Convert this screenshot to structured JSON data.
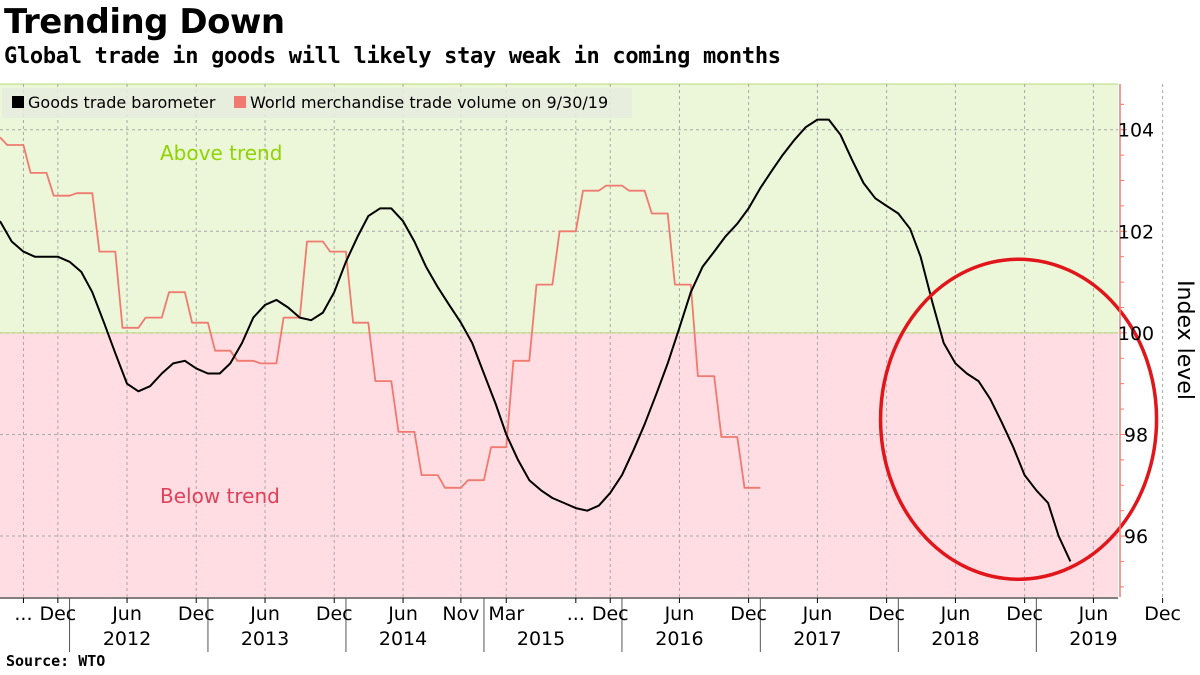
{
  "title": "Trending Down",
  "subtitle": "Global trade in goods will likely stay weak in coming months",
  "source": "Source: WTO",
  "chart_data": {
    "type": "line",
    "ylabel": "Index level",
    "ylim": [
      94.8,
      104.9
    ],
    "y_ticks": [
      96,
      98,
      100,
      102,
      104
    ],
    "trend_line": 100,
    "regions": {
      "above": "Above trend",
      "below": "Below trend"
    },
    "colors": {
      "barometer": "#000000",
      "volume": "#f07a70",
      "above_bg": "#ebf7d8",
      "below_bg": "#ffdde3",
      "above_text": "#8fd400",
      "below_text": "#e0405a",
      "highlight": "#e0161b"
    },
    "legend_position": "top-left",
    "x_tick_labels": [
      {
        "label": "...",
        "x": "2011-09-01"
      },
      {
        "label": "Dec",
        "x": "2011-12-01"
      },
      {
        "label": "Jun",
        "x": "2012-06-01"
      },
      {
        "label": "Dec",
        "x": "2012-12-01"
      },
      {
        "label": "Jun",
        "x": "2013-06-01"
      },
      {
        "label": "Dec",
        "x": "2013-12-01"
      },
      {
        "label": "Jun",
        "x": "2014-06-01"
      },
      {
        "label": "Nov",
        "x": "2014-11-01"
      },
      {
        "label": "Mar",
        "x": "2015-03-01"
      },
      {
        "label": "...",
        "x": "2015-09-01"
      },
      {
        "label": "Dec",
        "x": "2015-12-01"
      },
      {
        "label": "Jun",
        "x": "2016-06-01"
      },
      {
        "label": "Dec",
        "x": "2016-12-01"
      },
      {
        "label": "Jun",
        "x": "2017-06-01"
      },
      {
        "label": "Dec",
        "x": "2017-12-01"
      },
      {
        "label": "Jun",
        "x": "2018-06-01"
      },
      {
        "label": "Dec",
        "x": "2018-12-01"
      },
      {
        "label": "Jun",
        "x": "2019-06-01"
      },
      {
        "label": "Dec",
        "x": "2019-12-01"
      }
    ],
    "year_labels": [
      {
        "label": "2012",
        "x": "2012-06-01"
      },
      {
        "label": "2013",
        "x": "2013-06-01"
      },
      {
        "label": "2014",
        "x": "2014-06-01"
      },
      {
        "label": "2015",
        "x": "2015-06-01"
      },
      {
        "label": "2016",
        "x": "2016-06-01"
      },
      {
        "label": "2017",
        "x": "2017-06-01"
      },
      {
        "label": "2018",
        "x": "2018-06-01"
      },
      {
        "label": "2019",
        "x": "2019-06-01"
      }
    ],
    "series": [
      {
        "name": "Goods trade barometer",
        "points": [
          [
            "2011-07-01",
            102.2
          ],
          [
            "2011-08-01",
            101.8
          ],
          [
            "2011-09-01",
            101.6
          ],
          [
            "2011-10-01",
            101.5
          ],
          [
            "2011-11-01",
            101.5
          ],
          [
            "2011-12-01",
            101.5
          ],
          [
            "2012-01-01",
            101.4
          ],
          [
            "2012-02-01",
            101.2
          ],
          [
            "2012-03-01",
            100.8
          ],
          [
            "2012-04-01",
            100.2
          ],
          [
            "2012-05-01",
            99.6
          ],
          [
            "2012-06-01",
            99.0
          ],
          [
            "2012-07-01",
            98.85
          ],
          [
            "2012-08-01",
            98.95
          ],
          [
            "2012-09-01",
            99.2
          ],
          [
            "2012-10-01",
            99.4
          ],
          [
            "2012-11-01",
            99.45
          ],
          [
            "2012-12-01",
            99.3
          ],
          [
            "2013-01-01",
            99.2
          ],
          [
            "2013-02-01",
            99.2
          ],
          [
            "2013-03-01",
            99.4
          ],
          [
            "2013-04-01",
            99.8
          ],
          [
            "2013-05-01",
            100.3
          ],
          [
            "2013-06-01",
            100.55
          ],
          [
            "2013-07-01",
            100.65
          ],
          [
            "2013-08-01",
            100.5
          ],
          [
            "2013-09-01",
            100.3
          ],
          [
            "2013-10-01",
            100.25
          ],
          [
            "2013-11-01",
            100.4
          ],
          [
            "2013-12-01",
            100.8
          ],
          [
            "2014-01-01",
            101.4
          ],
          [
            "2014-02-01",
            101.9
          ],
          [
            "2014-03-01",
            102.3
          ],
          [
            "2014-04-01",
            102.45
          ],
          [
            "2014-05-01",
            102.45
          ],
          [
            "2014-06-01",
            102.2
          ],
          [
            "2014-07-01",
            101.8
          ],
          [
            "2014-08-01",
            101.3
          ],
          [
            "2014-09-01",
            100.9
          ],
          [
            "2014-10-01",
            100.55
          ],
          [
            "2014-11-01",
            100.2
          ],
          [
            "2014-12-01",
            99.8
          ],
          [
            "2015-01-01",
            99.2
          ],
          [
            "2015-02-01",
            98.6
          ],
          [
            "2015-03-01",
            98.0
          ],
          [
            "2015-04-01",
            97.5
          ],
          [
            "2015-05-01",
            97.1
          ],
          [
            "2015-06-01",
            96.9
          ],
          [
            "2015-07-01",
            96.75
          ],
          [
            "2015-08-01",
            96.65
          ],
          [
            "2015-09-01",
            96.55
          ],
          [
            "2015-10-01",
            96.5
          ],
          [
            "2015-11-01",
            96.6
          ],
          [
            "2015-12-01",
            96.85
          ],
          [
            "2016-01-01",
            97.2
          ],
          [
            "2016-02-01",
            97.7
          ],
          [
            "2016-03-01",
            98.2
          ],
          [
            "2016-04-01",
            98.8
          ],
          [
            "2016-05-01",
            99.4
          ],
          [
            "2016-06-01",
            100.1
          ],
          [
            "2016-07-01",
            100.8
          ],
          [
            "2016-08-01",
            101.3
          ],
          [
            "2016-09-01",
            101.6
          ],
          [
            "2016-10-01",
            101.9
          ],
          [
            "2016-11-01",
            102.15
          ],
          [
            "2016-12-01",
            102.45
          ],
          [
            "2017-01-01",
            102.85
          ],
          [
            "2017-02-01",
            103.2
          ],
          [
            "2017-03-01",
            103.5
          ],
          [
            "2017-04-01",
            103.8
          ],
          [
            "2017-05-01",
            104.05
          ],
          [
            "2017-06-01",
            104.2
          ],
          [
            "2017-07-01",
            104.2
          ],
          [
            "2017-08-01",
            103.9
          ],
          [
            "2017-09-01",
            103.4
          ],
          [
            "2017-10-01",
            102.95
          ],
          [
            "2017-11-01",
            102.65
          ],
          [
            "2017-12-01",
            102.5
          ],
          [
            "2018-01-01",
            102.35
          ],
          [
            "2018-02-01",
            102.05
          ],
          [
            "2018-03-01",
            101.5
          ],
          [
            "2018-04-01",
            100.6
          ],
          [
            "2018-05-01",
            99.8
          ],
          [
            "2018-06-01",
            99.4
          ],
          [
            "2018-07-01",
            99.2
          ],
          [
            "2018-08-01",
            99.05
          ],
          [
            "2018-09-01",
            98.7
          ],
          [
            "2018-10-01",
            98.25
          ],
          [
            "2018-11-01",
            97.75
          ],
          [
            "2018-12-01",
            97.2
          ],
          [
            "2019-01-01",
            96.9
          ],
          [
            "2019-02-01",
            96.65
          ],
          [
            "2019-03-01",
            96.0
          ],
          [
            "2019-04-01",
            95.5
          ]
        ]
      },
      {
        "name": "World merchandise trade volume on 9/30/19",
        "points": [
          [
            "2011-07-01",
            103.85
          ],
          [
            "2011-07-20",
            103.7
          ],
          [
            "2011-09-01",
            103.7
          ],
          [
            "2011-09-20",
            103.15
          ],
          [
            "2011-11-01",
            103.15
          ],
          [
            "2011-11-20",
            102.7
          ],
          [
            "2012-01-01",
            102.7
          ],
          [
            "2012-01-20",
            102.75
          ],
          [
            "2012-03-01",
            102.75
          ],
          [
            "2012-03-20",
            101.6
          ],
          [
            "2012-05-01",
            101.6
          ],
          [
            "2012-05-20",
            100.1
          ],
          [
            "2012-07-01",
            100.1
          ],
          [
            "2012-07-20",
            100.3
          ],
          [
            "2012-09-01",
            100.3
          ],
          [
            "2012-09-20",
            100.8
          ],
          [
            "2012-11-01",
            100.8
          ],
          [
            "2012-11-20",
            100.2
          ],
          [
            "2013-01-01",
            100.2
          ],
          [
            "2013-01-20",
            99.65
          ],
          [
            "2013-03-01",
            99.65
          ],
          [
            "2013-03-20",
            99.45
          ],
          [
            "2013-05-01",
            99.45
          ],
          [
            "2013-05-20",
            99.4
          ],
          [
            "2013-07-01",
            99.4
          ],
          [
            "2013-07-20",
            100.3
          ],
          [
            "2013-09-01",
            100.3
          ],
          [
            "2013-09-20",
            101.8
          ],
          [
            "2013-11-01",
            101.8
          ],
          [
            "2013-11-20",
            101.6
          ],
          [
            "2014-01-01",
            101.6
          ],
          [
            "2014-01-20",
            100.2
          ],
          [
            "2014-03-01",
            100.2
          ],
          [
            "2014-03-20",
            99.05
          ],
          [
            "2014-05-01",
            99.05
          ],
          [
            "2014-05-20",
            98.05
          ],
          [
            "2014-07-01",
            98.05
          ],
          [
            "2014-07-20",
            97.2
          ],
          [
            "2014-09-01",
            97.2
          ],
          [
            "2014-09-20",
            96.95
          ],
          [
            "2014-11-01",
            96.95
          ],
          [
            "2014-11-20",
            97.1
          ],
          [
            "2015-01-01",
            97.1
          ],
          [
            "2015-01-20",
            97.75
          ],
          [
            "2015-03-01",
            97.75
          ],
          [
            "2015-03-20",
            99.45
          ],
          [
            "2015-05-01",
            99.45
          ],
          [
            "2015-05-20",
            100.95
          ],
          [
            "2015-07-01",
            100.95
          ],
          [
            "2015-07-20",
            102.0
          ],
          [
            "2015-09-01",
            102.0
          ],
          [
            "2015-09-20",
            102.8
          ],
          [
            "2015-11-01",
            102.8
          ],
          [
            "2015-11-20",
            102.9
          ],
          [
            "2016-01-01",
            102.9
          ],
          [
            "2016-01-20",
            102.8
          ],
          [
            "2016-03-01",
            102.8
          ],
          [
            "2016-03-20",
            102.35
          ],
          [
            "2016-05-01",
            102.35
          ],
          [
            "2016-05-20",
            100.95
          ],
          [
            "2016-07-01",
            100.95
          ],
          [
            "2016-07-20",
            99.15
          ],
          [
            "2016-09-01",
            99.15
          ],
          [
            "2016-09-20",
            97.95
          ],
          [
            "2016-11-01",
            97.95
          ],
          [
            "2016-11-20",
            96.95
          ],
          [
            "2017-01-01",
            96.95
          ]
        ]
      }
    ]
  }
}
